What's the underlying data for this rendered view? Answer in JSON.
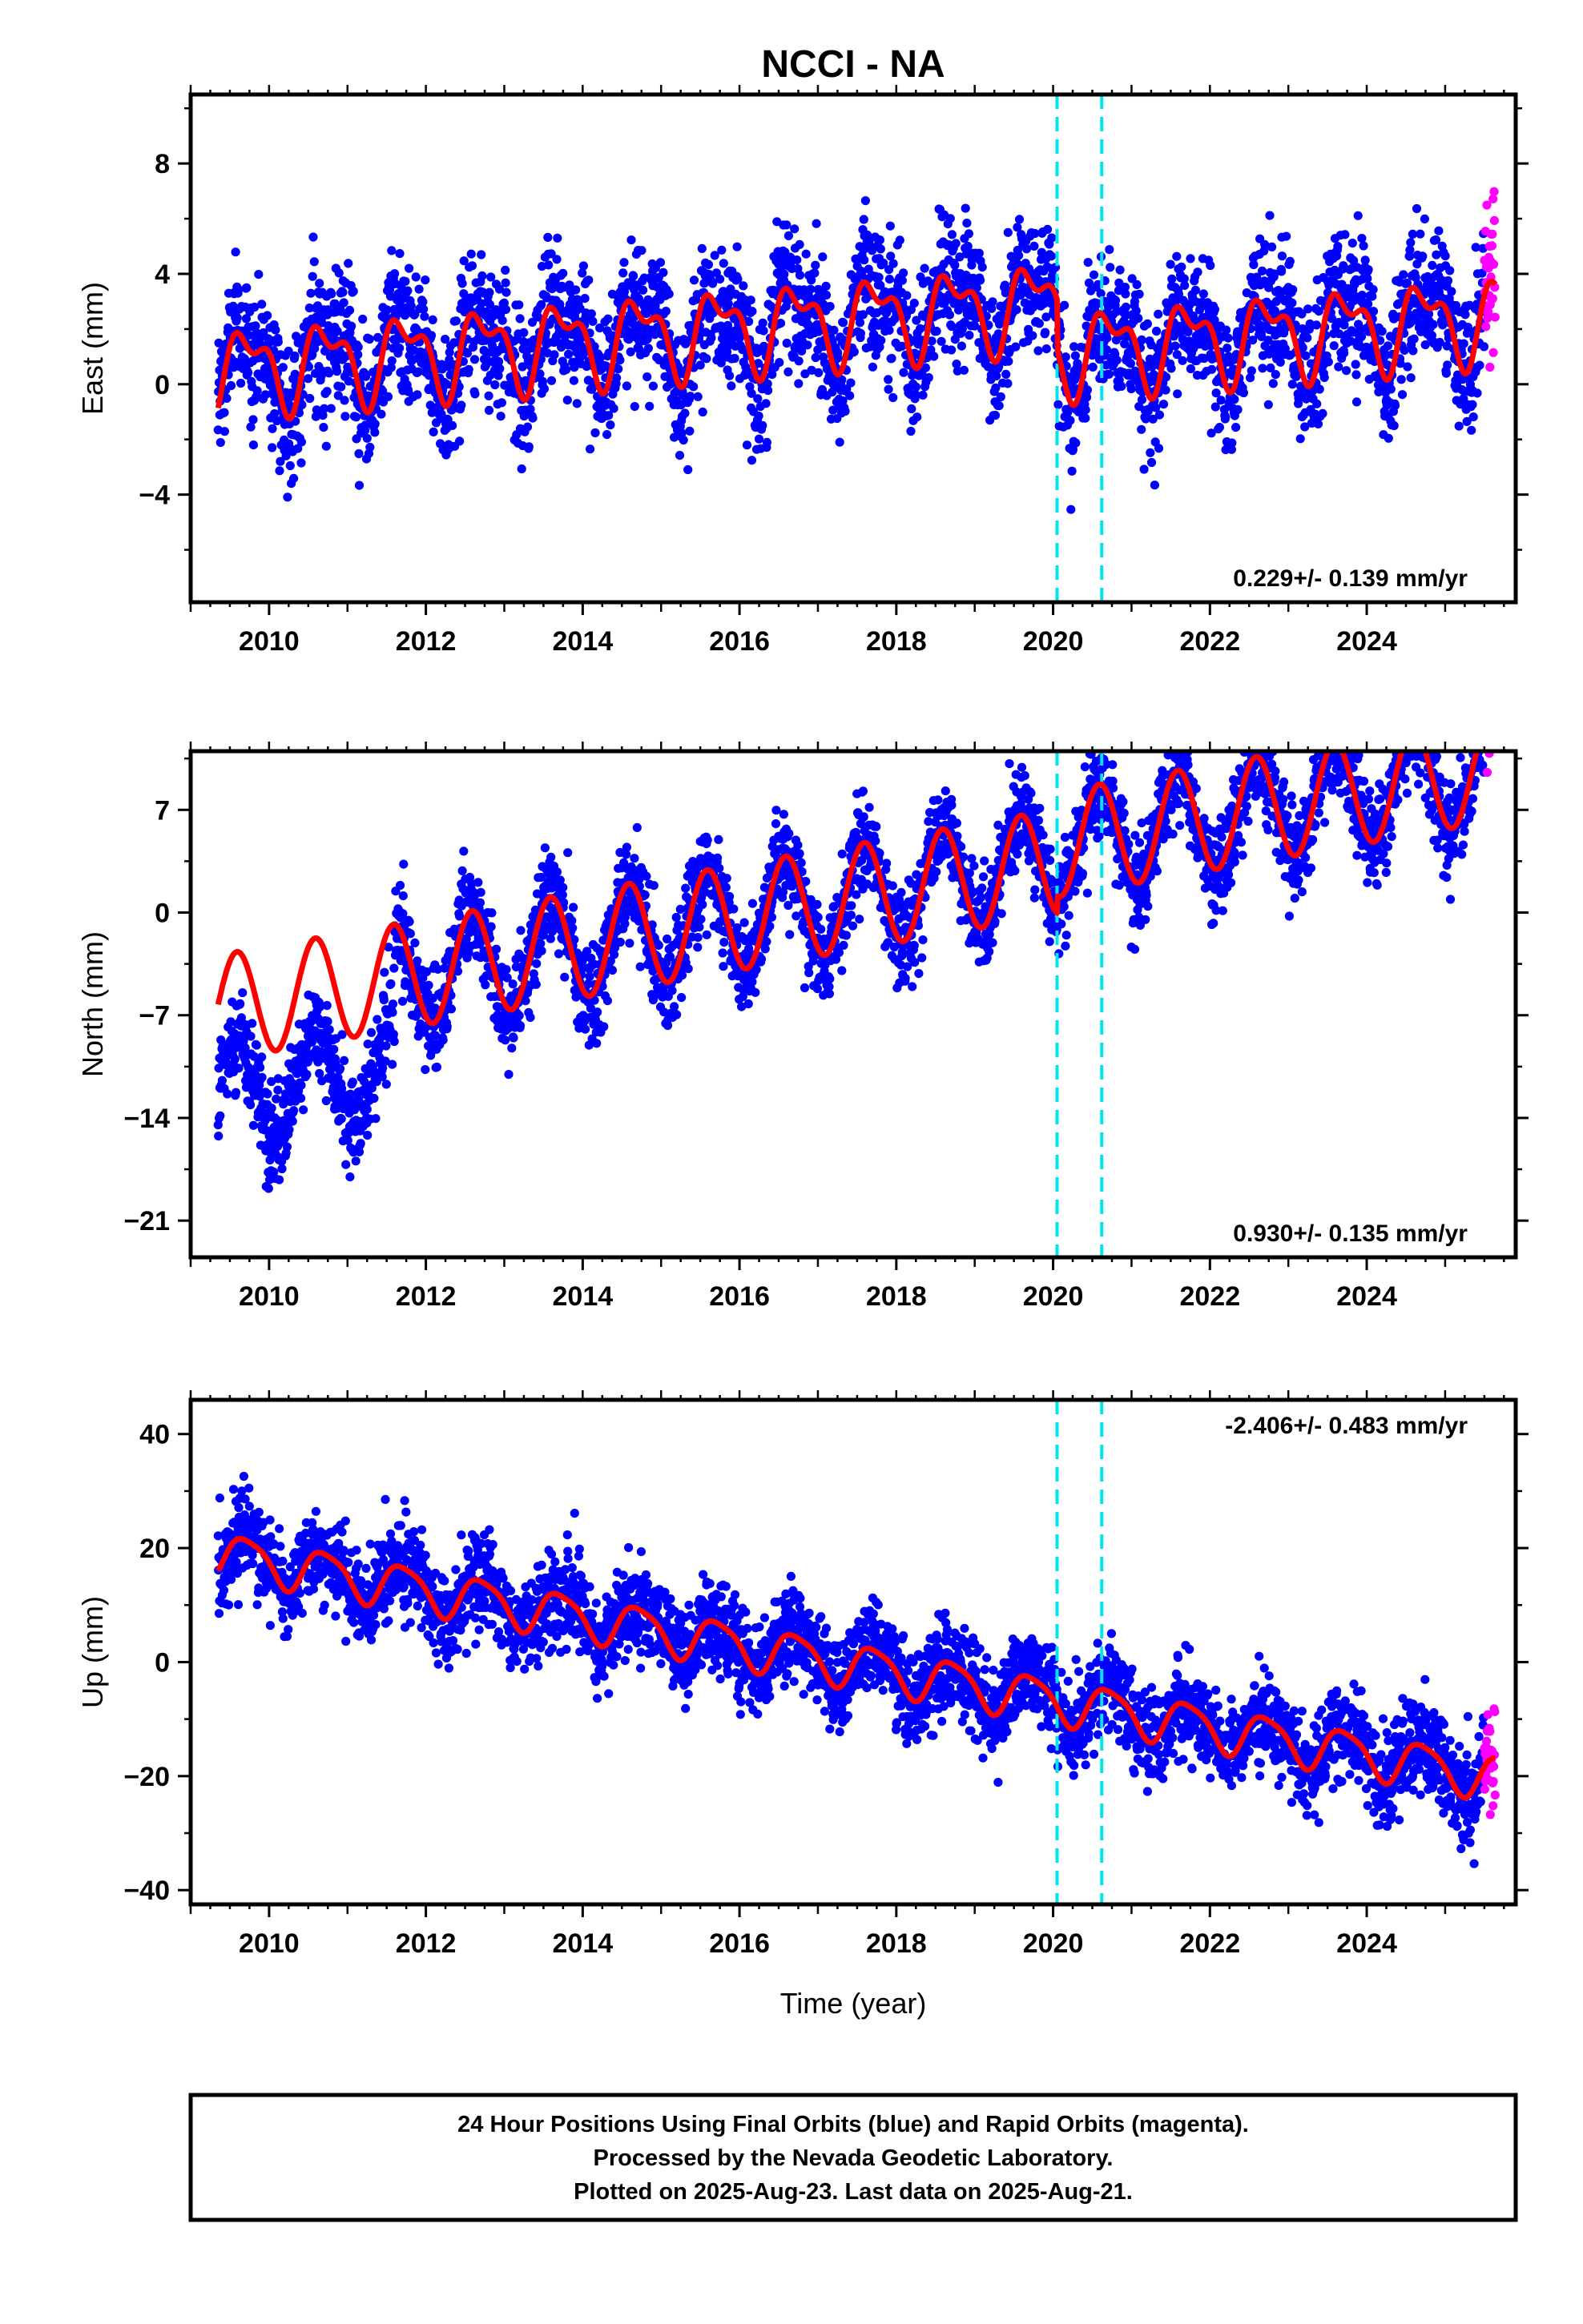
{
  "title": "NCCI - NA",
  "xlabel": "Time (year)",
  "caption": [
    "24 Hour Positions Using Final Orbits (blue) and Rapid Orbits (magenta).",
    "Processed by the Nevada Geodetic Laboratory.",
    "Plotted on 2025-Aug-23. Last data on 2025-Aug-21."
  ],
  "colors": {
    "final_orbits": "#0000ff",
    "rapid_orbits": "#ff00ff",
    "model_fit": "#ff0000",
    "offsets": "#00e5ee"
  },
  "chart_data": [
    {
      "type": "scatter",
      "ylabel": "East (mm)",
      "xlim": [
        2009.0,
        2025.9
      ],
      "ylim": [
        -7.9,
        10.5
      ],
      "xticks": [
        "2010",
        "2012",
        "2014",
        "2016",
        "2018",
        "2020",
        "2022",
        "2024"
      ],
      "yticks": [
        "8",
        "4",
        "0",
        "−4"
      ],
      "rate": "0.229+/- 0.139 mm/yr",
      "rate_position": "bottom-right",
      "offsets": [
        2020.05,
        2020.62
      ],
      "data_start": 2009.35,
      "data_end": 2025.64,
      "rapid_start": 2025.5,
      "model": {
        "base": 0.5,
        "trend": 0.229,
        "annual_amp": 1.3,
        "annual_phase": 2009.48,
        "semiannual_amp": 0.7,
        "offset_steps": [
          -1.8,
          0.0
        ]
      },
      "scatter": 1.2,
      "series": [
        {
          "name": "Final Orbits (blue)",
          "role": "final"
        },
        {
          "name": "Rapid Orbits (magenta)",
          "role": "rapid"
        }
      ]
    },
    {
      "type": "scatter",
      "ylabel": "North (mm)",
      "xlim": [
        2009.0,
        2025.9
      ],
      "ylim": [
        -23.5,
        11.0
      ],
      "xticks": [
        "2010",
        "2012",
        "2014",
        "2016",
        "2018",
        "2020",
        "2022",
        "2024"
      ],
      "yticks": [
        "7",
        "0",
        "−7",
        "−14",
        "−21"
      ],
      "rate": "0.930+/- 0.135 mm/yr",
      "rate_position": "bottom-right",
      "offsets": [
        2020.05,
        2020.62
      ],
      "data_start": 2009.35,
      "data_end": 2025.64,
      "rapid_start": 2025.5,
      "model": {
        "base": -6.5,
        "trend": 0.93,
        "annual_amp": 3.6,
        "annual_phase": 2009.34,
        "semiannual_amp": 0.0,
        "offset_steps": [
          1.2,
          0.0
        ]
      },
      "early_anomaly": {
        "until": 2011.6,
        "shift": -6.0
      },
      "scatter": 1.6,
      "series": [
        {
          "name": "Final Orbits (blue)",
          "role": "final"
        },
        {
          "name": "Rapid Orbits (magenta)",
          "role": "rapid"
        }
      ]
    },
    {
      "type": "scatter",
      "ylabel": "Up (mm)",
      "xlim": [
        2009.0,
        2025.9
      ],
      "ylim": [
        -42.5,
        46.0
      ],
      "xticks": [
        "2010",
        "2012",
        "2014",
        "2016",
        "2018",
        "2020",
        "2022",
        "2024"
      ],
      "yticks": [
        "40",
        "20",
        "0",
        "−20",
        "−40"
      ],
      "rate": "-2.406+/- 0.483 mm/yr",
      "rate_position": "top-right",
      "offsets": [
        2020.05,
        2020.62
      ],
      "data_start": 2009.35,
      "data_end": 2025.64,
      "rapid_start": 2025.5,
      "model": {
        "base": 19.0,
        "trend": -2.406,
        "annual_amp": 3.8,
        "annual_phase": 2009.47,
        "semiannual_amp": 0.8,
        "offset_steps": [
          0.0,
          0.0
        ]
      },
      "scatter": 4.0,
      "series": [
        {
          "name": "Final Orbits (blue)",
          "role": "final"
        },
        {
          "name": "Rapid Orbits (magenta)",
          "role": "rapid"
        }
      ]
    }
  ]
}
